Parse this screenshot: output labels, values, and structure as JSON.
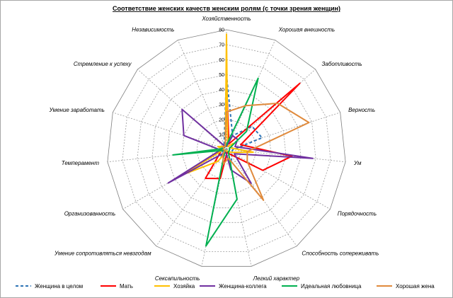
{
  "chart_data": {
    "type": "radar",
    "title": "Соответствие женских качеств женским ролям (с точки зрения женщин)",
    "categories": [
      "Хозяйственность",
      "Хорошая внешность",
      "Заботливость",
      "Верность",
      "Ум",
      "Порядочность",
      "Способность сопереживать",
      "Легкий характер",
      "Сексапильность",
      "Умение сопротивляться невзгодам",
      "Организованность",
      "Темперамент",
      "Умение заработать",
      "Стремление к успеху",
      "Независимость"
    ],
    "rlim": [
      0,
      80
    ],
    "ticks": [
      0,
      10,
      20,
      30,
      40,
      50,
      60,
      70,
      80
    ],
    "grid": true,
    "legend_position": "bottom",
    "series": [
      {
        "name": "Женщина в целом",
        "color": "#2e75b6",
        "dash": true,
        "values": [
          50,
          10,
          23,
          25,
          4,
          4,
          6,
          12,
          2,
          6,
          3,
          3,
          4,
          3,
          4
        ]
      },
      {
        "name": "Мать",
        "color": "#ff0000",
        "dash": false,
        "values": [
          47,
          4,
          66,
          10,
          44,
          28,
          4,
          2,
          20,
          24,
          5,
          4,
          2,
          2,
          2
        ]
      },
      {
        "name": "Хозяйка",
        "color": "#ffc000",
        "dash": false,
        "values": [
          77,
          2,
          6,
          3,
          18,
          4,
          2,
          1,
          2,
          10,
          34,
          2,
          6,
          3,
          2
        ]
      },
      {
        "name": "Женщина-коллега",
        "color": "#7030a0",
        "dash": false,
        "values": [
          2,
          10,
          10,
          6,
          58,
          6,
          28,
          14,
          2,
          3,
          45,
          4,
          30,
          40,
          2
        ]
      },
      {
        "name": "Идеальная любовница",
        "color": "#00b050",
        "dash": false,
        "values": [
          3,
          52,
          18,
          2,
          2,
          2,
          2,
          34,
          66,
          2,
          1,
          36,
          2,
          2,
          2
        ]
      },
      {
        "name": "Хорошая жена",
        "color": "#e08a3c",
        "dash": false,
        "values": [
          25,
          32,
          46,
          58,
          14,
          16,
          42,
          6,
          10,
          4,
          1,
          2,
          2,
          3,
          2
        ]
      }
    ]
  }
}
